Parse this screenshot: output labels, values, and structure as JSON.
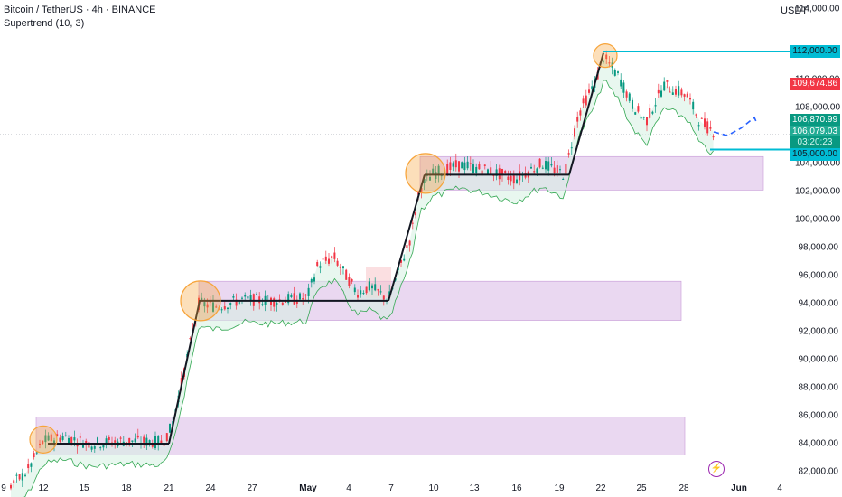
{
  "header": {
    "title": "Bitcoin / TetherUS · 4h · BINANCE",
    "indicator": "Supertrend (10, 3)",
    "currency": "USDT"
  },
  "price_tags": {
    "resistance": "112,000.00",
    "high": "109,674.86",
    "open": "106,870.99",
    "last": "106,079.03",
    "countdown": "03:20:23",
    "support": "105,000.00"
  },
  "y_axis": [
    "114,000.00",
    "110,000.00",
    "108,000.00",
    "104,000.00",
    "102,000.00",
    "100,000.00",
    "98,000.00",
    "96,000.00",
    "94,000.00",
    "92,000.00",
    "90,000.00",
    "88,000.00",
    "86,000.00",
    "84,000.00",
    "82,000.00"
  ],
  "x_axis": [
    {
      "label": "9",
      "bold": false
    },
    {
      "label": "12",
      "bold": false
    },
    {
      "label": "15",
      "bold": false
    },
    {
      "label": "18",
      "bold": false
    },
    {
      "label": "21",
      "bold": false
    },
    {
      "label": "24",
      "bold": false
    },
    {
      "label": "27",
      "bold": false
    },
    {
      "label": "May",
      "bold": true
    },
    {
      "label": "4",
      "bold": false
    },
    {
      "label": "7",
      "bold": false
    },
    {
      "label": "10",
      "bold": false
    },
    {
      "label": "13",
      "bold": false
    },
    {
      "label": "16",
      "bold": false
    },
    {
      "label": "19",
      "bold": false
    },
    {
      "label": "22",
      "bold": false
    },
    {
      "label": "25",
      "bold": false
    },
    {
      "label": "28",
      "bold": false
    },
    {
      "label": "Jun",
      "bold": true
    },
    {
      "label": "4",
      "bold": false
    }
  ],
  "colors": {
    "up": "#089981",
    "down": "#f23645",
    "zone": "#d9b8e6",
    "cyan": "#00bcd4",
    "orange": "#f7a43a"
  },
  "icons": {
    "alert": "lightning-icon"
  }
}
